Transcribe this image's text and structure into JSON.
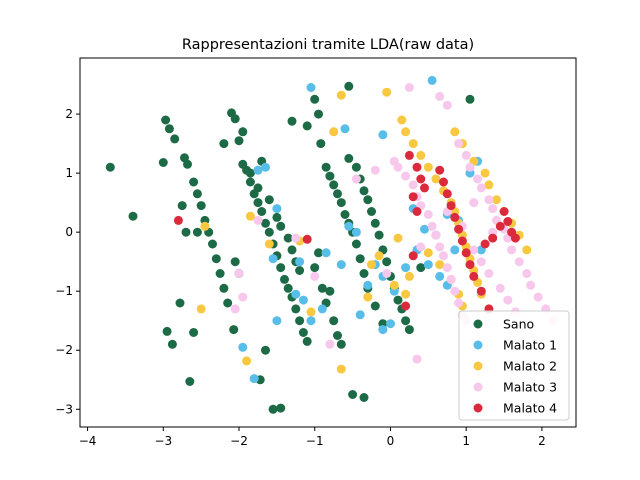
{
  "chart_data": {
    "type": "scatter",
    "title": "Rappresentazioni tramite LDA(raw data)",
    "xlabel": "",
    "ylabel": "",
    "xlim": [
      -4.1,
      2.45
    ],
    "ylim": [
      -3.3,
      2.95
    ],
    "xticks": [
      -4,
      -3,
      -2,
      -1,
      0,
      1,
      2
    ],
    "yticks": [
      -3,
      -2,
      -1,
      0,
      1,
      2
    ],
    "grid": false,
    "legend_position": "bottom-right",
    "series": [
      {
        "name": "Sano",
        "color": "#1d6b46",
        "points": [
          [
            -3.7,
            1.1
          ],
          [
            -3.4,
            0.27
          ],
          [
            -2.97,
            1.9
          ],
          [
            -3.0,
            1.18
          ],
          [
            -2.92,
            1.75
          ],
          [
            -2.85,
            1.58
          ],
          [
            -2.78,
            -1.2
          ],
          [
            -2.72,
            1.26
          ],
          [
            -2.68,
            1.15
          ],
          [
            -2.6,
            0.85
          ],
          [
            -2.55,
            0.65
          ],
          [
            -2.5,
            0.45
          ],
          [
            -2.45,
            0.2
          ],
          [
            -2.4,
            0.0
          ],
          [
            -2.35,
            -0.2
          ],
          [
            -2.3,
            -0.45
          ],
          [
            -2.25,
            -0.7
          ],
          [
            -2.2,
            -0.95
          ],
          [
            -2.15,
            -1.2
          ],
          [
            -2.6,
            -1.7
          ],
          [
            -2.95,
            -1.68
          ],
          [
            -2.88,
            -1.9
          ],
          [
            -2.65,
            -2.53
          ],
          [
            -2.75,
            0.45
          ],
          [
            -2.7,
            0.0
          ],
          [
            -2.55,
            0.0
          ],
          [
            -2.2,
            1.5
          ],
          [
            -2.1,
            2.02
          ],
          [
            -2.05,
            1.92
          ],
          [
            -2.0,
            1.55
          ],
          [
            -1.95,
            1.15
          ],
          [
            -1.9,
            1.05
          ],
          [
            -1.85,
            0.85
          ],
          [
            -1.8,
            0.65
          ],
          [
            -1.75,
            0.5
          ],
          [
            -1.7,
            0.35
          ],
          [
            -1.65,
            0.15
          ],
          [
            -1.6,
            0.0
          ],
          [
            -1.55,
            -0.2
          ],
          [
            -1.5,
            -0.4
          ],
          [
            -1.45,
            -0.6
          ],
          [
            -1.4,
            -0.8
          ],
          [
            -1.35,
            -0.95
          ],
          [
            -1.3,
            -1.1
          ],
          [
            -1.25,
            -1.3
          ],
          [
            -1.2,
            -1.5
          ],
          [
            -1.15,
            -1.7
          ],
          [
            -1.1,
            -1.85
          ],
          [
            -2.05,
            -0.5
          ],
          [
            -2.0,
            -0.7
          ],
          [
            -2.07,
            -1.65
          ],
          [
            -1.95,
            1.7
          ],
          [
            -1.85,
            1.0
          ],
          [
            -1.75,
            0.75
          ],
          [
            -1.7,
            1.2
          ],
          [
            -1.6,
            0.55
          ],
          [
            -1.5,
            0.25
          ],
          [
            -1.45,
            0.1
          ],
          [
            -1.35,
            -0.1
          ],
          [
            -1.3,
            -0.3
          ],
          [
            -1.25,
            -0.5
          ],
          [
            -1.2,
            -0.65
          ],
          [
            -1.65,
            -2.0
          ],
          [
            -1.72,
            -2.5
          ],
          [
            -1.55,
            -3.0
          ],
          [
            -1.45,
            -2.98
          ],
          [
            -1.1,
            1.8
          ],
          [
            -1.0,
            2.25
          ],
          [
            -0.95,
            2.0
          ],
          [
            -0.92,
            1.5
          ],
          [
            -0.85,
            1.1
          ],
          [
            -0.8,
            0.95
          ],
          [
            -0.75,
            0.8
          ],
          [
            -0.7,
            0.65
          ],
          [
            -0.65,
            0.5
          ],
          [
            -0.6,
            0.3
          ],
          [
            -0.55,
            0.15
          ],
          [
            -0.5,
            0.0
          ],
          [
            -0.45,
            -0.2
          ],
          [
            -0.4,
            -0.45
          ],
          [
            -0.35,
            -0.7
          ],
          [
            -0.3,
            -0.95
          ],
          [
            -0.2,
            -1.25
          ],
          [
            -0.1,
            -1.55
          ],
          [
            -1.0,
            -0.6
          ],
          [
            -0.9,
            -0.95
          ],
          [
            -0.85,
            -1.2
          ],
          [
            -0.75,
            -1.5
          ],
          [
            -0.7,
            -1.75
          ],
          [
            -0.65,
            -1.9
          ],
          [
            -0.55,
            2.47
          ],
          [
            -0.55,
            1.25
          ],
          [
            -0.45,
            1.1
          ],
          [
            -0.4,
            0.9
          ],
          [
            -0.35,
            0.7
          ],
          [
            -0.3,
            0.55
          ],
          [
            -0.25,
            0.35
          ],
          [
            -0.2,
            0.15
          ],
          [
            -0.15,
            -0.05
          ],
          [
            -0.1,
            -0.3
          ],
          [
            -0.05,
            -0.5
          ],
          [
            0.0,
            -0.75
          ],
          [
            0.05,
            -0.95
          ],
          [
            0.1,
            -1.15
          ],
          [
            0.15,
            -1.3
          ],
          [
            0.2,
            -1.5
          ],
          [
            0.25,
            -1.65
          ],
          [
            -0.5,
            -2.75
          ],
          [
            -0.35,
            -2.8
          ],
          [
            -0.95,
            -0.35
          ],
          [
            -0.8,
            -1.0
          ],
          [
            1.05,
            2.25
          ],
          [
            -1.3,
            1.88
          ],
          [
            0.4,
            -0.6
          ]
        ]
      },
      {
        "name": "Malato 1",
        "color": "#58bde9",
        "points": [
          [
            -1.05,
            2.45
          ],
          [
            0.55,
            2.57
          ],
          [
            -0.6,
            1.75
          ],
          [
            -0.1,
            1.65
          ],
          [
            -1.75,
            1.05
          ],
          [
            -1.65,
            1.1
          ],
          [
            -1.5,
            0.4
          ],
          [
            -0.55,
            0.1
          ],
          [
            -0.45,
            0.0
          ],
          [
            -0.85,
            -0.35
          ],
          [
            -1.2,
            -0.5
          ],
          [
            -1.55,
            -0.45
          ],
          [
            -0.65,
            -0.55
          ],
          [
            -0.9,
            -1.3
          ],
          [
            -1.05,
            -1.5
          ],
          [
            -1.15,
            -1.15
          ],
          [
            -1.25,
            -1.05
          ],
          [
            -1.5,
            -1.5
          ],
          [
            -1.95,
            -1.95
          ],
          [
            -1.8,
            -2.48
          ],
          [
            -0.2,
            -0.55
          ],
          [
            -0.1,
            -0.75
          ],
          [
            0.05,
            -1.0
          ],
          [
            0.0,
            -1.55
          ],
          [
            -0.1,
            -1.65
          ],
          [
            0.2,
            -0.6
          ],
          [
            0.5,
            -0.55
          ],
          [
            0.3,
            0.4
          ],
          [
            0.45,
            0.05
          ],
          [
            0.6,
            -0.05
          ],
          [
            0.65,
            -0.75
          ],
          [
            0.75,
            -0.9
          ],
          [
            0.85,
            -0.3
          ],
          [
            0.9,
            0.2
          ],
          [
            1.05,
            1.0
          ],
          [
            1.15,
            1.2
          ],
          [
            -0.3,
            -0.9
          ],
          [
            -0.4,
            -1.4
          ],
          [
            0.35,
            -0.3
          ],
          [
            0.75,
            0.3
          ],
          [
            1.2,
            -0.3
          ]
        ]
      },
      {
        "name": "Malato 2",
        "color": "#f8c840",
        "points": [
          [
            -0.05,
            2.37
          ],
          [
            -0.65,
            2.32
          ],
          [
            -0.75,
            1.7
          ],
          [
            -1.85,
            0.27
          ],
          [
            -2.45,
            0.1
          ],
          [
            -2.5,
            -1.3
          ],
          [
            -1.9,
            -2.18
          ],
          [
            -0.65,
            -2.32
          ],
          [
            -1.6,
            -0.2
          ],
          [
            -1.2,
            -0.15
          ],
          [
            -1.05,
            -1.35
          ],
          [
            -0.15,
            -0.4
          ],
          [
            -0.25,
            -0.55
          ],
          [
            0.1,
            -0.1
          ],
          [
            0.05,
            -0.9
          ],
          [
            0.2,
            -1.05
          ],
          [
            0.15,
            1.9
          ],
          [
            0.2,
            1.7
          ],
          [
            0.3,
            1.5
          ],
          [
            0.4,
            1.3
          ],
          [
            0.5,
            1.1
          ],
          [
            0.6,
            0.9
          ],
          [
            0.7,
            0.7
          ],
          [
            0.8,
            0.5
          ],
          [
            0.85,
            0.35
          ],
          [
            0.9,
            0.15
          ],
          [
            0.95,
            -0.05
          ],
          [
            1.0,
            -0.25
          ],
          [
            1.05,
            -0.45
          ],
          [
            1.1,
            -0.65
          ],
          [
            1.15,
            -0.85
          ],
          [
            1.2,
            -1.05
          ],
          [
            0.85,
            1.7
          ],
          [
            0.95,
            1.5
          ],
          [
            1.1,
            1.2
          ],
          [
            1.25,
            1.0
          ],
          [
            1.3,
            0.8
          ],
          [
            1.4,
            0.55
          ],
          [
            1.5,
            0.35
          ],
          [
            1.6,
            0.15
          ],
          [
            1.7,
            -0.05
          ],
          [
            1.8,
            -0.3
          ],
          [
            0.5,
            -0.35
          ],
          [
            0.65,
            -0.55
          ],
          [
            0.8,
            -0.8
          ],
          [
            0.9,
            -1.05
          ],
          [
            0.95,
            -1.25
          ],
          [
            -0.3,
            -1.1
          ],
          [
            0.25,
            -0.75
          ]
        ]
      },
      {
        "name": "Malato 3",
        "color": "#f8c7ec",
        "points": [
          [
            0.25,
            2.45
          ],
          [
            0.65,
            2.3
          ],
          [
            0.75,
            2.15
          ],
          [
            -0.45,
            0.9
          ],
          [
            -0.2,
            1.05
          ],
          [
            0.05,
            1.2
          ],
          [
            0.1,
            1.1
          ],
          [
            0.2,
            0.95
          ],
          [
            0.3,
            0.8
          ],
          [
            0.35,
            0.6
          ],
          [
            0.4,
            0.45
          ],
          [
            0.5,
            0.3
          ],
          [
            0.55,
            0.1
          ],
          [
            0.6,
            -0.05
          ],
          [
            0.65,
            -0.25
          ],
          [
            0.7,
            -0.4
          ],
          [
            0.75,
            -0.6
          ],
          [
            0.8,
            -0.8
          ],
          [
            0.85,
            -1.0
          ],
          [
            0.9,
            -1.2
          ],
          [
            0.95,
            -1.4
          ],
          [
            1.0,
            -1.5
          ],
          [
            0.9,
            1.5
          ],
          [
            1.0,
            1.3
          ],
          [
            1.05,
            1.1
          ],
          [
            1.15,
            0.9
          ],
          [
            1.2,
            0.75
          ],
          [
            1.3,
            0.55
          ],
          [
            1.35,
            0.4
          ],
          [
            1.4,
            0.2
          ],
          [
            1.5,
            0.05
          ],
          [
            1.55,
            -0.1
          ],
          [
            1.6,
            -0.3
          ],
          [
            1.7,
            -0.5
          ],
          [
            1.8,
            -0.7
          ],
          [
            1.85,
            -0.9
          ],
          [
            1.95,
            -1.1
          ],
          [
            2.05,
            -1.3
          ],
          [
            2.15,
            -1.5
          ],
          [
            1.1,
            -0.3
          ],
          [
            1.2,
            -0.5
          ],
          [
            1.3,
            -0.7
          ],
          [
            1.45,
            -0.95
          ],
          [
            1.55,
            -1.15
          ],
          [
            1.65,
            -1.35
          ],
          [
            -1.95,
            -1.1
          ],
          [
            -2.05,
            -1.3
          ],
          [
            -2.0,
            -0.7
          ],
          [
            -1.75,
            0.2
          ],
          [
            -1.25,
            -0.1
          ],
          [
            -1.0,
            -0.75
          ],
          [
            -0.8,
            -1.9
          ],
          [
            0.35,
            -2.15
          ],
          [
            -0.05,
            -0.7
          ],
          [
            0.4,
            -0.25
          ],
          [
            0.75,
            0.35
          ],
          [
            0.95,
            0.1
          ],
          [
            1.1,
            0.5
          ],
          [
            1.35,
            0.0
          ]
        ]
      },
      {
        "name": "Malato 4",
        "color": "#dc2a3d",
        "points": [
          [
            -2.8,
            0.2
          ],
          [
            -1.1,
            -0.12
          ],
          [
            0.25,
            1.3
          ],
          [
            0.35,
            1.1
          ],
          [
            0.4,
            0.9
          ],
          [
            0.45,
            0.75
          ],
          [
            0.3,
            0.6
          ],
          [
            0.35,
            0.35
          ],
          [
            0.3,
            -0.4
          ],
          [
            0.2,
            -1.25
          ],
          [
            0.65,
            1.05
          ],
          [
            0.7,
            0.85
          ],
          [
            0.75,
            0.65
          ],
          [
            0.8,
            0.45
          ],
          [
            0.85,
            0.25
          ],
          [
            0.9,
            0.05
          ],
          [
            0.95,
            -0.15
          ],
          [
            1.0,
            -0.35
          ],
          [
            1.05,
            -0.55
          ],
          [
            1.1,
            -0.75
          ],
          [
            1.2,
            -1.0
          ],
          [
            1.3,
            -1.3
          ],
          [
            1.5,
            0.35
          ],
          [
            1.55,
            0.18
          ],
          [
            1.6,
            0.0
          ],
          [
            1.65,
            -0.1
          ],
          [
            1.45,
            0.1
          ],
          [
            1.35,
            -0.1
          ],
          [
            1.25,
            -0.2
          ]
        ]
      }
    ]
  }
}
